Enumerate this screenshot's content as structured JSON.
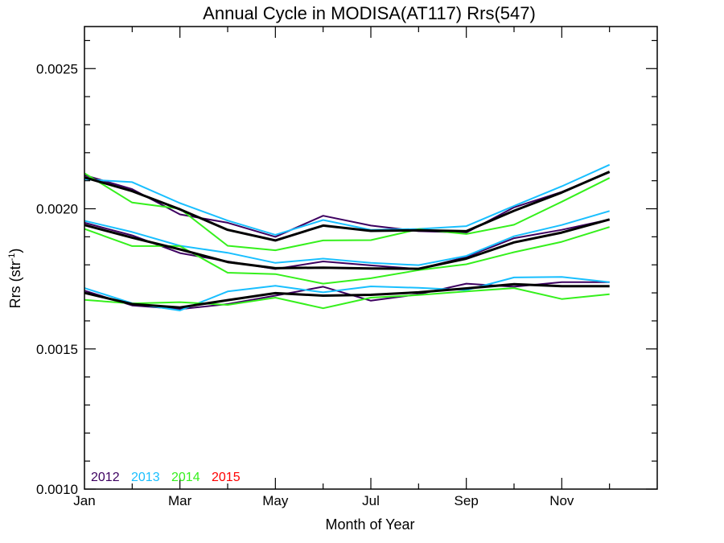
{
  "chart_data": {
    "type": "line",
    "title": "Annual Cycle in MODISA(AT117) Rrs(547)",
    "xlabel": "Month of Year",
    "ylabel_main": "Rrs (str",
    "ylabel_sup": "-1",
    "ylabel_tail": ")",
    "xlim": [
      1,
      13
    ],
    "ylim": [
      0.001,
      0.00265
    ],
    "x_ticks": [
      {
        "x": 1,
        "label": "Jan"
      },
      {
        "x": 3,
        "label": "Mar"
      },
      {
        "x": 5,
        "label": "May"
      },
      {
        "x": 7,
        "label": "Jul"
      },
      {
        "x": 9,
        "label": "Sep"
      },
      {
        "x": 11,
        "label": "Nov"
      }
    ],
    "y_ticks": [
      {
        "y": 0.001,
        "label": "0.0010"
      },
      {
        "y": 0.0015,
        "label": "0.0015"
      },
      {
        "y": 0.002,
        "label": "0.0020"
      },
      {
        "y": 0.0025,
        "label": "0.0025"
      }
    ],
    "legend": {
      "position": "bottom-left",
      "entries": [
        {
          "label": "2012",
          "color": "#3d0060"
        },
        {
          "label": "2013",
          "color": "#19bfff"
        },
        {
          "label": "2014",
          "color": "#35f01c"
        },
        {
          "label": "2015",
          "color": "#ff0000"
        }
      ]
    },
    "series": [
      {
        "group": "upper",
        "year": "2012",
        "color": "#3d0060",
        "width": 2,
        "x": [
          1,
          2,
          3,
          4,
          5,
          6,
          7,
          8,
          9,
          10,
          11,
          12
        ],
        "y": [
          0.00212,
          0.00207,
          0.00198,
          0.00195,
          0.0019,
          0.001975,
          0.00194,
          0.00192,
          0.001915,
          0.002005,
          0.00206,
          0.00213
        ]
      },
      {
        "group": "upper",
        "year": "2013",
        "color": "#19bfff",
        "width": 2,
        "x": [
          1,
          2,
          3,
          4,
          5,
          6,
          7,
          8,
          9,
          10,
          11,
          12
        ],
        "y": [
          0.002105,
          0.002095,
          0.00202,
          0.001958,
          0.001907,
          0.00196,
          0.001925,
          0.001928,
          0.001938,
          0.00201,
          0.00208,
          0.002157
        ]
      },
      {
        "group": "upper",
        "year": "2014",
        "color": "#35f01c",
        "width": 2,
        "x": [
          1,
          2,
          3,
          4,
          5,
          6,
          7,
          8,
          9,
          10,
          11,
          12
        ],
        "y": [
          0.002127,
          0.002022,
          0.002,
          0.001868,
          0.001852,
          0.001887,
          0.001888,
          0.001927,
          0.00191,
          0.001943,
          0.002025,
          0.00211
        ]
      },
      {
        "group": "upper",
        "year": "mean",
        "color": "#000000",
        "width": 3,
        "x": [
          1,
          2,
          3,
          4,
          5,
          6,
          7,
          8,
          9,
          10,
          11,
          12
        ],
        "y": [
          0.002112,
          0.002063,
          0.001998,
          0.001925,
          0.001887,
          0.00194,
          0.001921,
          0.001923,
          0.00192,
          0.001993,
          0.002058,
          0.002132
        ]
      },
      {
        "group": "middle",
        "year": "2012",
        "color": "#3d0060",
        "width": 2,
        "x": [
          1,
          2,
          3,
          4,
          5,
          6,
          7,
          8,
          9,
          10,
          11,
          12
        ],
        "y": [
          0.00195,
          0.001905,
          0.001842,
          0.001812,
          0.001785,
          0.001812,
          0.001798,
          0.001785,
          0.001828,
          0.001895,
          0.001925,
          0.001962
        ]
      },
      {
        "group": "middle",
        "year": "2013",
        "color": "#19bfff",
        "width": 2,
        "x": [
          1,
          2,
          3,
          4,
          5,
          6,
          7,
          8,
          9,
          10,
          11,
          12
        ],
        "y": [
          0.001957,
          0.001917,
          0.001868,
          0.001843,
          0.001807,
          0.001822,
          0.001807,
          0.001799,
          0.001832,
          0.001902,
          0.001942,
          0.001992
        ]
      },
      {
        "group": "middle",
        "year": "2014",
        "color": "#35f01c",
        "width": 2,
        "x": [
          1,
          2,
          3,
          4,
          5,
          6,
          7,
          8,
          9,
          10,
          11,
          12
        ],
        "y": [
          0.001928,
          0.001867,
          0.001867,
          0.001772,
          0.001767,
          0.001733,
          0.001752,
          0.001781,
          0.001802,
          0.001845,
          0.001882,
          0.001935
        ]
      },
      {
        "group": "middle",
        "year": "mean",
        "color": "#000000",
        "width": 3,
        "x": [
          1,
          2,
          3,
          4,
          5,
          6,
          7,
          8,
          9,
          10,
          11,
          12
        ],
        "y": [
          0.001942,
          0.001897,
          0.001855,
          0.00181,
          0.001788,
          0.00179,
          0.001787,
          0.001786,
          0.001822,
          0.00188,
          0.001915,
          0.001962
        ]
      },
      {
        "group": "lower",
        "year": "2012",
        "color": "#3d0060",
        "width": 2,
        "x": [
          1,
          2,
          3,
          4,
          5,
          6,
          7,
          8,
          9,
          10,
          11,
          12
        ],
        "y": [
          0.001708,
          0.001655,
          0.001642,
          0.00166,
          0.00169,
          0.001722,
          0.001672,
          0.001695,
          0.001733,
          0.001722,
          0.001738,
          0.001738
        ]
      },
      {
        "group": "lower",
        "year": "2013",
        "color": "#19bfff",
        "width": 2,
        "x": [
          1,
          2,
          3,
          4,
          5,
          6,
          7,
          8,
          9,
          10,
          11,
          12
        ],
        "y": [
          0.001717,
          0.001663,
          0.001637,
          0.001705,
          0.001725,
          0.001702,
          0.001723,
          0.001718,
          0.00171,
          0.001755,
          0.001757,
          0.001738
        ]
      },
      {
        "group": "lower",
        "year": "2014",
        "color": "#35f01c",
        "width": 2,
        "x": [
          1,
          2,
          3,
          4,
          5,
          6,
          7,
          8,
          9,
          10,
          11,
          12
        ],
        "y": [
          0.001675,
          0.001662,
          0.001667,
          0.001657,
          0.001683,
          0.001645,
          0.001683,
          0.001692,
          0.001705,
          0.001717,
          0.001678,
          0.001695
        ]
      },
      {
        "group": "lower",
        "year": "mean",
        "color": "#000000",
        "width": 3,
        "x": [
          1,
          2,
          3,
          4,
          5,
          6,
          7,
          8,
          9,
          10,
          11,
          12
        ],
        "y": [
          0.0017,
          0.00166,
          0.001648,
          0.001674,
          0.001699,
          0.00169,
          0.001693,
          0.001702,
          0.001716,
          0.001731,
          0.001724,
          0.001724
        ]
      }
    ]
  }
}
